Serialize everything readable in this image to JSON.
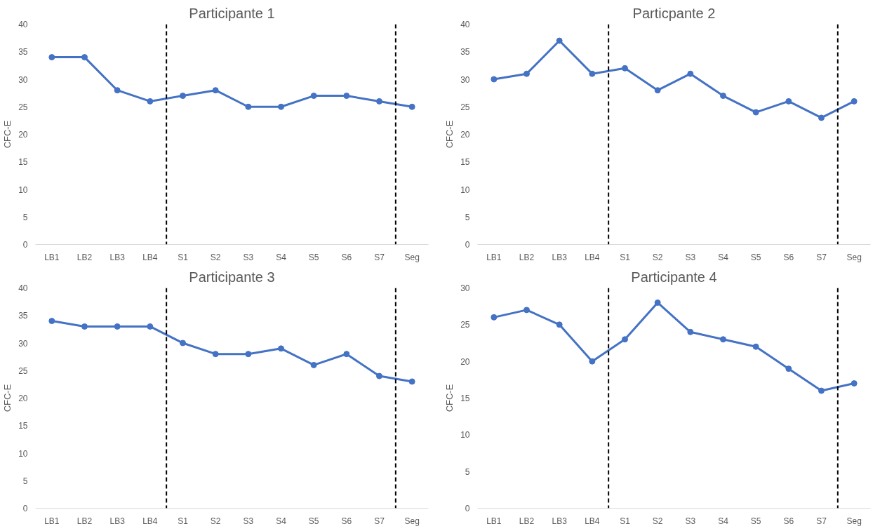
{
  "chart_data": [
    {
      "type": "line",
      "title": "Participante 1",
      "ylabel": "CFC-E",
      "categories": [
        "LB1",
        "LB2",
        "LB3",
        "LB4",
        "S1",
        "S2",
        "S3",
        "S4",
        "S5",
        "S6",
        "S7",
        "Seg"
      ],
      "series": [
        {
          "color": "#4472c4",
          "values": [
            34,
            34,
            28,
            26,
            27,
            28,
            25,
            25,
            27,
            27,
            26,
            25
          ]
        }
      ],
      "ylim": [
        0,
        40
      ],
      "yticks": [
        0,
        5,
        10,
        15,
        20,
        25,
        30,
        35,
        40
      ],
      "grid": false,
      "marker": "circle",
      "line_style": "solid"
    },
    {
      "type": "line",
      "title": "Particpante 2",
      "ylabel": "CFC-E",
      "categories": [
        "LB1",
        "LB2",
        "LB3",
        "LB4",
        "S1",
        "S2",
        "S3",
        "S4",
        "S5",
        "S6",
        "S7",
        "Seg"
      ],
      "series": [
        {
          "color": "#4472c4",
          "values": [
            30,
            31,
            37,
            31,
            32,
            28,
            31,
            27,
            24,
            26,
            23,
            26
          ]
        }
      ],
      "ylim": [
        0,
        40
      ],
      "yticks": [
        0,
        5,
        10,
        15,
        20,
        25,
        30,
        35,
        40
      ],
      "grid": false,
      "marker": "circle",
      "line_style": "solid"
    },
    {
      "type": "line",
      "title": "Participante 3",
      "ylabel": "CFC-E",
      "categories": [
        "LB1",
        "LB2",
        "LB3",
        "LB4",
        "S1",
        "S2",
        "S3",
        "S4",
        "S5",
        "S6",
        "S7",
        "Seg"
      ],
      "series": [
        {
          "color": "#4472c4",
          "values": [
            34,
            33,
            33,
            33,
            30,
            28,
            28,
            29,
            26,
            28,
            24,
            23
          ]
        }
      ],
      "ylim": [
        0,
        40
      ],
      "yticks": [
        0,
        5,
        10,
        15,
        20,
        25,
        30,
        35,
        40
      ],
      "grid": false,
      "marker": "circle",
      "line_style": "solid"
    },
    {
      "type": "line",
      "title": "Participante 4",
      "ylabel": "CFC-E",
      "categories": [
        "LB1",
        "LB2",
        "LB3",
        "LB4",
        "S1",
        "S2",
        "S3",
        "S4",
        "S5",
        "S6",
        "S7",
        "Seg"
      ],
      "series": [
        {
          "color": "#4472c4",
          "values": [
            26,
            27,
            25,
            20,
            23,
            28,
            24,
            23,
            22,
            19,
            16,
            17
          ]
        }
      ],
      "ylim": [
        0,
        30
      ],
      "yticks": [
        0,
        5,
        10,
        15,
        20,
        25,
        30
      ],
      "grid": false,
      "marker": "circle",
      "line_style": "solid"
    }
  ]
}
